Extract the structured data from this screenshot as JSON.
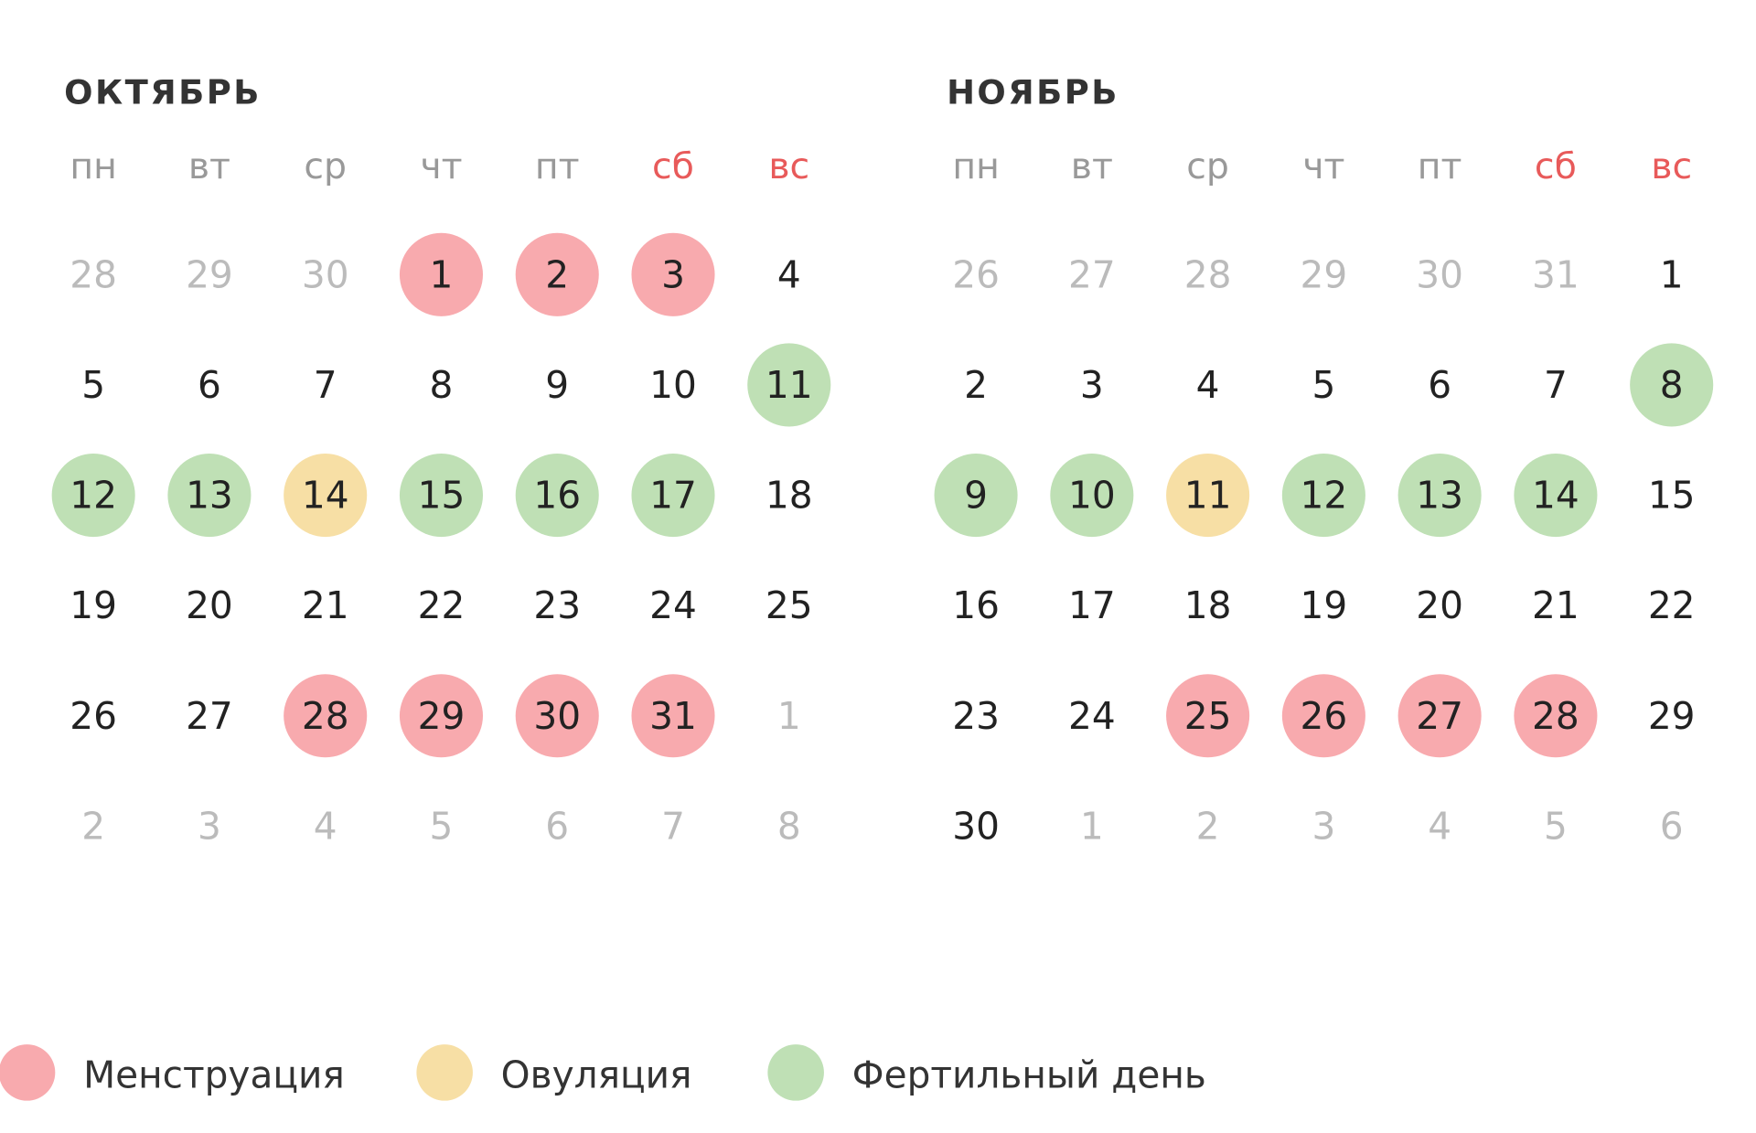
{
  "months": [
    {
      "title": "ОКТЯБРЬ",
      "weekdays": [
        {
          "label": "пн"
        },
        {
          "label": "вт"
        },
        {
          "label": "ср"
        },
        {
          "label": "чт"
        },
        {
          "label": "пт"
        },
        {
          "label": "сб",
          "weekend": true
        },
        {
          "label": "вс",
          "weekend": true
        }
      ],
      "weeks": [
        [
          {
            "day": 28,
            "status": "other"
          },
          {
            "day": 29,
            "status": "other"
          },
          {
            "day": 30,
            "status": "other"
          },
          {
            "day": 1,
            "status": "menstruation"
          },
          {
            "day": 2,
            "status": "menstruation"
          },
          {
            "day": 3,
            "status": "menstruation"
          },
          {
            "day": 4
          }
        ],
        [
          {
            "day": 5
          },
          {
            "day": 6
          },
          {
            "day": 7
          },
          {
            "day": 8
          },
          {
            "day": 9
          },
          {
            "day": 10
          },
          {
            "day": 11,
            "status": "fertile"
          }
        ],
        [
          {
            "day": 12,
            "status": "fertile"
          },
          {
            "day": 13,
            "status": "fertile"
          },
          {
            "day": 14,
            "status": "ovulation"
          },
          {
            "day": 15,
            "status": "fertile"
          },
          {
            "day": 16,
            "status": "fertile"
          },
          {
            "day": 17,
            "status": "fertile"
          },
          {
            "day": 18
          }
        ],
        [
          {
            "day": 19
          },
          {
            "day": 20
          },
          {
            "day": 21
          },
          {
            "day": 22
          },
          {
            "day": 23
          },
          {
            "day": 24
          },
          {
            "day": 25
          }
        ],
        [
          {
            "day": 26
          },
          {
            "day": 27
          },
          {
            "day": 28,
            "status": "menstruation"
          },
          {
            "day": 29,
            "status": "menstruation"
          },
          {
            "day": 30,
            "status": "menstruation"
          },
          {
            "day": 31,
            "status": "menstruation"
          },
          {
            "day": 1,
            "status": "other"
          }
        ],
        [
          {
            "day": 2,
            "status": "other"
          },
          {
            "day": 3,
            "status": "other"
          },
          {
            "day": 4,
            "status": "other"
          },
          {
            "day": 5,
            "status": "other"
          },
          {
            "day": 6,
            "status": "other"
          },
          {
            "day": 7,
            "status": "other"
          },
          {
            "day": 8,
            "status": "other"
          }
        ]
      ]
    },
    {
      "title": "НОЯБРЬ",
      "weekdays": [
        {
          "label": "пн"
        },
        {
          "label": "вт"
        },
        {
          "label": "ср"
        },
        {
          "label": "чт"
        },
        {
          "label": "пт"
        },
        {
          "label": "сб",
          "weekend": true
        },
        {
          "label": "вс",
          "weekend": true
        }
      ],
      "weeks": [
        [
          {
            "day": 26,
            "status": "other"
          },
          {
            "day": 27,
            "status": "other"
          },
          {
            "day": 28,
            "status": "other"
          },
          {
            "day": 29,
            "status": "other"
          },
          {
            "day": 30,
            "status": "other"
          },
          {
            "day": 31,
            "status": "other"
          },
          {
            "day": 1
          }
        ],
        [
          {
            "day": 2
          },
          {
            "day": 3
          },
          {
            "day": 4
          },
          {
            "day": 5
          },
          {
            "day": 6
          },
          {
            "day": 7
          },
          {
            "day": 8,
            "status": "fertile"
          }
        ],
        [
          {
            "day": 9,
            "status": "fertile"
          },
          {
            "day": 10,
            "status": "fertile"
          },
          {
            "day": 11,
            "status": "ovulation"
          },
          {
            "day": 12,
            "status": "fertile"
          },
          {
            "day": 13,
            "status": "fertile"
          },
          {
            "day": 14,
            "status": "fertile"
          },
          {
            "day": 15
          }
        ],
        [
          {
            "day": 16
          },
          {
            "day": 17
          },
          {
            "day": 18
          },
          {
            "day": 19
          },
          {
            "day": 20
          },
          {
            "day": 21
          },
          {
            "day": 22
          }
        ],
        [
          {
            "day": 23
          },
          {
            "day": 24
          },
          {
            "day": 25,
            "status": "menstruation"
          },
          {
            "day": 26,
            "status": "menstruation"
          },
          {
            "day": 27,
            "status": "menstruation"
          },
          {
            "day": 28,
            "status": "menstruation"
          },
          {
            "day": 29
          }
        ],
        [
          {
            "day": 30
          },
          {
            "day": 1,
            "status": "other"
          },
          {
            "day": 2,
            "status": "other"
          },
          {
            "day": 3,
            "status": "other"
          },
          {
            "day": 4,
            "status": "other"
          },
          {
            "day": 5,
            "status": "other"
          },
          {
            "day": 6,
            "status": "other"
          }
        ]
      ]
    }
  ],
  "legend": [
    {
      "label": "Менструация",
      "status": "menstruation",
      "color": "#f8aaae"
    },
    {
      "label": "Овуляция",
      "status": "ovulation",
      "color": "#f7dfa5"
    },
    {
      "label": "Фертильный день",
      "status": "fertile",
      "color": "#bfe0b5"
    }
  ]
}
